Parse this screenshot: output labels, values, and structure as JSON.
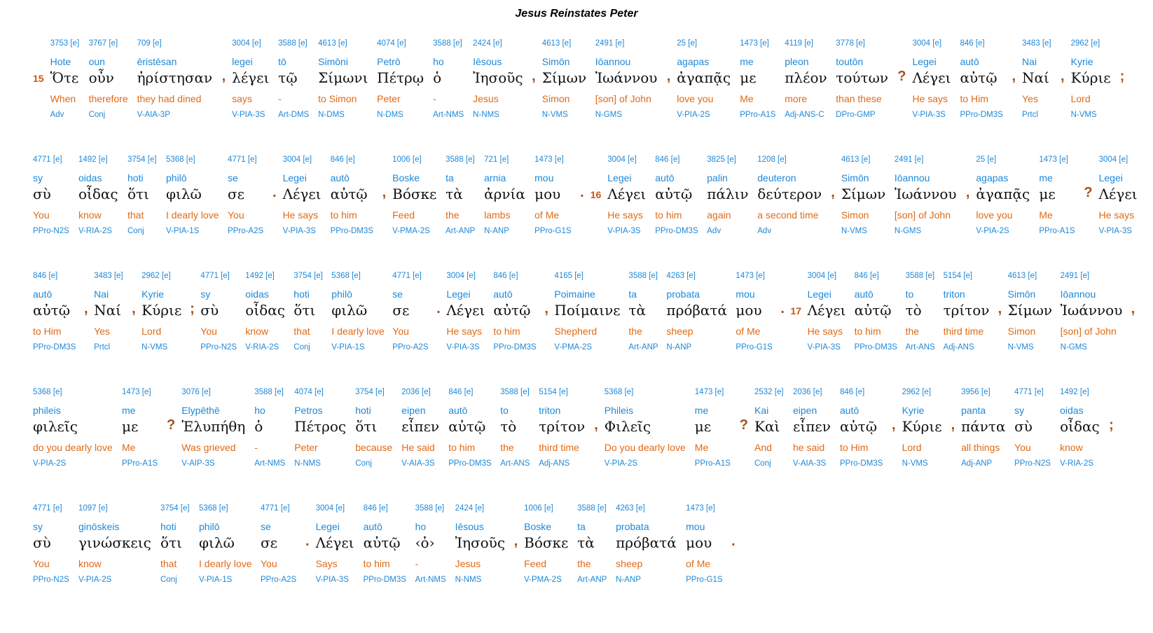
{
  "title": "Jesus Reinstates Peter",
  "rows": [
    [
      {
        "v": "15"
      },
      {
        "s": "3753 [e]",
        "t": "Hote",
        "g": "Ὅτε",
        "e": "When",
        "p": "Adv"
      },
      {
        "s": "3767 [e]",
        "t": "oun",
        "g": "οὖν",
        "e": "therefore",
        "p": "Conj"
      },
      {
        "s": "709 [e]",
        "t": "ēristēsan",
        "g": "ἠρίστησαν",
        "e": "they had dined",
        "p": "V-AIA-3P"
      },
      {
        "c": ","
      },
      {
        "s": "3004 [e]",
        "t": "legei",
        "g": "λέγει",
        "e": "says",
        "p": "V-PIA-3S"
      },
      {
        "s": "3588 [e]",
        "t": "tō",
        "g": "τῷ",
        "e": "-",
        "p": "Art-DMS"
      },
      {
        "s": "4613 [e]",
        "t": "Simōni",
        "g": "Σίμωνι",
        "e": "to Simon",
        "p": "N-DMS"
      },
      {
        "s": "4074 [e]",
        "t": "Petrō",
        "g": "Πέτρῳ",
        "e": "Peter",
        "p": "N-DMS"
      },
      {
        "s": "3588 [e]",
        "t": "ho",
        "g": "ὁ",
        "e": "-",
        "p": "Art-NMS"
      },
      {
        "s": "2424 [e]",
        "t": "Iēsous",
        "g": "Ἰησοῦς",
        "e": "Jesus",
        "p": "N-NMS"
      },
      {
        "c": ","
      },
      {
        "s": "4613 [e]",
        "t": "Simōn",
        "g": "Σίμων",
        "e": "Simon",
        "p": "N-VMS"
      },
      {
        "s": "2491 [e]",
        "t": "Iōannou",
        "g": "Ἰωάννου",
        "e": "[son] of John",
        "p": "N-GMS"
      },
      {
        "c": ","
      },
      {
        "s": "25 [e]",
        "t": "agapas",
        "g": "ἀγαπᾷς",
        "e": "love you",
        "p": "V-PIA-2S"
      },
      {
        "s": "1473 [e]",
        "t": "me",
        "g": "με",
        "e": "Me",
        "p": "PPro-A1S"
      },
      {
        "s": "4119 [e]",
        "t": "pleon",
        "g": "πλέον",
        "e": "more",
        "p": "Adj-ANS-C"
      },
      {
        "s": "3778 [e]",
        "t": "toutōn",
        "g": "τούτων",
        "e": "than these",
        "p": "DPro-GMP"
      },
      {
        "c": "?"
      },
      {
        "s": "3004 [e]",
        "t": "Legei",
        "g": "Λέγει",
        "e": "He says",
        "p": "V-PIA-3S"
      },
      {
        "s": "846 [e]",
        "t": "autō",
        "g": "αὐτῷ",
        "e": "to Him",
        "p": "PPro-DM3S"
      },
      {
        "c": ","
      },
      {
        "s": "3483 [e]",
        "t": "Nai",
        "g": "Ναί",
        "e": "Yes",
        "p": "Prtcl"
      },
      {
        "c": ","
      },
      {
        "s": "2962 [e]",
        "t": "Kyrie",
        "g": "Κύριε",
        "e": "Lord",
        "p": "N-VMS"
      },
      {
        "c": ";"
      }
    ],
    [
      {
        "s": "4771 [e]",
        "t": "sy",
        "g": "σὺ",
        "e": "You",
        "p": "PPro-N2S"
      },
      {
        "s": "1492 [e]",
        "t": "oidas",
        "g": "οἶδας",
        "e": "know",
        "p": "V-RIA-2S"
      },
      {
        "s": "3754 [e]",
        "t": "hoti",
        "g": "ὅτι",
        "e": "that",
        "p": "Conj"
      },
      {
        "s": "5368 [e]",
        "t": "philō",
        "g": "φιλῶ",
        "e": "I dearly love",
        "p": "V-PIA-1S"
      },
      {
        "s": "4771 [e]",
        "t": "se",
        "g": "σε",
        "e": "You",
        "p": "PPro-A2S"
      },
      {
        "c": "."
      },
      {
        "s": "3004 [e]",
        "t": "Legei",
        "g": "Λέγει",
        "e": "He says",
        "p": "V-PIA-3S"
      },
      {
        "s": "846 [e]",
        "t": "autō",
        "g": "αὐτῷ",
        "e": "to him",
        "p": "PPro-DM3S"
      },
      {
        "c": ","
      },
      {
        "s": "1006 [e]",
        "t": "Boske",
        "g": "Βόσκε",
        "e": "Feed",
        "p": "V-PMA-2S"
      },
      {
        "s": "3588 [e]",
        "t": "ta",
        "g": "τὰ",
        "e": "the",
        "p": "Art-ANP"
      },
      {
        "s": "721 [e]",
        "t": "arnia",
        "g": "ἀρνία",
        "e": "lambs",
        "p": "N-ANP"
      },
      {
        "s": "1473 [e]",
        "t": "mou",
        "g": "μου",
        "e": "of Me",
        "p": "PPro-G1S"
      },
      {
        "c": "."
      },
      {
        "v": "16"
      },
      {
        "s": "3004 [e]",
        "t": "Legei",
        "g": "Λέγει",
        "e": "He says",
        "p": "V-PIA-3S"
      },
      {
        "s": "846 [e]",
        "t": "autō",
        "g": "αὐτῷ",
        "e": "to him",
        "p": "PPro-DM3S"
      },
      {
        "s": "3825 [e]",
        "t": "palin",
        "g": "πάλιν",
        "e": "again",
        "p": "Adv"
      },
      {
        "s": "1208 [e]",
        "t": "deuteron",
        "g": "δεύτερον",
        "e": "a second time",
        "p": "Adv"
      },
      {
        "c": ","
      },
      {
        "s": "4613 [e]",
        "t": "Simōn",
        "g": "Σίμων",
        "e": "Simon",
        "p": "N-VMS"
      },
      {
        "s": "2491 [e]",
        "t": "Iōannou",
        "g": "Ἰωάννου",
        "e": "[son] of John",
        "p": "N-GMS"
      },
      {
        "c": ","
      },
      {
        "s": "25 [e]",
        "t": "agapas",
        "g": "ἀγαπᾷς",
        "e": "love you",
        "p": "V-PIA-2S"
      },
      {
        "s": "1473 [e]",
        "t": "me",
        "g": "με",
        "e": "Me",
        "p": "PPro-A1S"
      },
      {
        "c": "?"
      },
      {
        "s": "3004 [e]",
        "t": "Legei",
        "g": "Λέγει",
        "e": "He says",
        "p": "V-PIA-3S"
      }
    ],
    [
      {
        "s": "846 [e]",
        "t": "autō",
        "g": "αὐτῷ",
        "e": "to Him",
        "p": "PPro-DM3S"
      },
      {
        "c": ","
      },
      {
        "s": "3483 [e]",
        "t": "Nai",
        "g": "Ναί",
        "e": "Yes",
        "p": "Prtcl"
      },
      {
        "c": ","
      },
      {
        "s": "2962 [e]",
        "t": "Kyrie",
        "g": "Κύριε",
        "e": "Lord",
        "p": "N-VMS"
      },
      {
        "c": ";"
      },
      {
        "s": "4771 [e]",
        "t": "sy",
        "g": "σὺ",
        "e": "You",
        "p": "PPro-N2S"
      },
      {
        "s": "1492 [e]",
        "t": "oidas",
        "g": "οἶδας",
        "e": "know",
        "p": "V-RIA-2S"
      },
      {
        "s": "3754 [e]",
        "t": "hoti",
        "g": "ὅτι",
        "e": "that",
        "p": "Conj"
      },
      {
        "s": "5368 [e]",
        "t": "philō",
        "g": "φιλῶ",
        "e": "I dearly love",
        "p": "V-PIA-1S"
      },
      {
        "s": "4771 [e]",
        "t": "se",
        "g": "σε",
        "e": "You",
        "p": "PPro-A2S"
      },
      {
        "c": "."
      },
      {
        "s": "3004 [e]",
        "t": "Legei",
        "g": "Λέγει",
        "e": "He says",
        "p": "V-PIA-3S"
      },
      {
        "s": "846 [e]",
        "t": "autō",
        "g": "αὐτῷ",
        "e": "to him",
        "p": "PPro-DM3S"
      },
      {
        "c": ","
      },
      {
        "s": "4165 [e]",
        "t": "Poimaine",
        "g": "Ποίμαινε",
        "e": "Shepherd",
        "p": "V-PMA-2S"
      },
      {
        "s": "3588 [e]",
        "t": "ta",
        "g": "τὰ",
        "e": "the",
        "p": "Art-ANP"
      },
      {
        "s": "4263 [e]",
        "t": "probata",
        "g": "πρόβατά",
        "e": "sheep",
        "p": "N-ANP"
      },
      {
        "s": "1473 [e]",
        "t": "mou",
        "g": "μου",
        "e": "of Me",
        "p": "PPro-G1S"
      },
      {
        "c": "."
      },
      {
        "v": "17"
      },
      {
        "s": "3004 [e]",
        "t": "Legei",
        "g": "Λέγει",
        "e": "He says",
        "p": "V-PIA-3S"
      },
      {
        "s": "846 [e]",
        "t": "autō",
        "g": "αὐτῷ",
        "e": "to him",
        "p": "PPro-DM3S"
      },
      {
        "s": "3588 [e]",
        "t": "to",
        "g": "τὸ",
        "e": "the",
        "p": "Art-ANS"
      },
      {
        "s": "5154 [e]",
        "t": "triton",
        "g": "τρίτον",
        "e": "third time",
        "p": "Adj-ANS"
      },
      {
        "c": ","
      },
      {
        "s": "4613 [e]",
        "t": "Simōn",
        "g": "Σίμων",
        "e": "Simon",
        "p": "N-VMS"
      },
      {
        "s": "2491 [e]",
        "t": "Iōannou",
        "g": "Ἰωάννου",
        "e": "[son] of John",
        "p": "N-GMS"
      },
      {
        "c": ","
      }
    ],
    [
      {
        "s": "5368 [e]",
        "t": "phileis",
        "g": "φιλεῖς",
        "e": "do you dearly love",
        "p": "V-PIA-2S"
      },
      {
        "s": "1473 [e]",
        "t": "me",
        "g": "με",
        "e": "Me",
        "p": "PPro-A1S"
      },
      {
        "c": "?"
      },
      {
        "s": "3076 [e]",
        "t": "Elypēthē",
        "g": "Ἐλυπήθη",
        "e": "Was grieved",
        "p": "V-AIP-3S"
      },
      {
        "s": "3588 [e]",
        "t": "ho",
        "g": "ὁ",
        "e": "-",
        "p": "Art-NMS"
      },
      {
        "s": "4074 [e]",
        "t": "Petros",
        "g": "Πέτρος",
        "e": "Peter",
        "p": "N-NMS"
      },
      {
        "s": "3754 [e]",
        "t": "hoti",
        "g": "ὅτι",
        "e": "because",
        "p": "Conj"
      },
      {
        "s": "2036 [e]",
        "t": "eipen",
        "g": "εἶπεν",
        "e": "He said",
        "p": "V-AIA-3S"
      },
      {
        "s": "846 [e]",
        "t": "autō",
        "g": "αὐτῷ",
        "e": "to him",
        "p": "PPro-DM3S"
      },
      {
        "s": "3588 [e]",
        "t": "to",
        "g": "τὸ",
        "e": "the",
        "p": "Art-ANS"
      },
      {
        "s": "5154 [e]",
        "t": "triton",
        "g": "τρίτον",
        "e": "third time",
        "p": "Adj-ANS"
      },
      {
        "c": ","
      },
      {
        "s": "5368 [e]",
        "t": "Phileis",
        "g": "Φιλεῖς",
        "e": "Do you dearly love",
        "p": "V-PIA-2S"
      },
      {
        "s": "1473 [e]",
        "t": "me",
        "g": "με",
        "e": "Me",
        "p": "PPro-A1S"
      },
      {
        "c": "?"
      },
      {
        "s": "2532 [e]",
        "t": "Kai",
        "g": "Καὶ",
        "e": "And",
        "p": "Conj"
      },
      {
        "s": "2036 [e]",
        "t": "eipen",
        "g": "εἶπεν",
        "e": "he said",
        "p": "V-AIA-3S"
      },
      {
        "s": "846 [e]",
        "t": "autō",
        "g": "αὐτῷ",
        "e": "to Him",
        "p": "PPro-DM3S"
      },
      {
        "c": ","
      },
      {
        "s": "2962 [e]",
        "t": "Kyrie",
        "g": "Κύριε",
        "e": "Lord",
        "p": "N-VMS"
      },
      {
        "c": ","
      },
      {
        "s": "3956 [e]",
        "t": "panta",
        "g": "πάντα",
        "e": "all things",
        "p": "Adj-ANP"
      },
      {
        "s": "4771 [e]",
        "t": "sy",
        "g": "σὺ",
        "e": "You",
        "p": "PPro-N2S"
      },
      {
        "s": "1492 [e]",
        "t": "oidas",
        "g": "οἶδας",
        "e": "know",
        "p": "V-RIA-2S"
      },
      {
        "c": ";"
      }
    ],
    [
      {
        "s": "4771 [e]",
        "t": "sy",
        "g": "σὺ",
        "e": "You",
        "p": "PPro-N2S"
      },
      {
        "s": "1097 [e]",
        "t": "ginōskeis",
        "g": "γινώσκεις",
        "e": "know",
        "p": "V-PIA-2S"
      },
      {
        "s": "3754 [e]",
        "t": "hoti",
        "g": "ὅτι",
        "e": "that",
        "p": "Conj"
      },
      {
        "s": "5368 [e]",
        "t": "philō",
        "g": "φιλῶ",
        "e": "I dearly love",
        "p": "V-PIA-1S"
      },
      {
        "s": "4771 [e]",
        "t": "se",
        "g": "σε",
        "e": "You",
        "p": "PPro-A2S"
      },
      {
        "c": "."
      },
      {
        "s": "3004 [e]",
        "t": "Legei",
        "g": "Λέγει",
        "e": "Says",
        "p": "V-PIA-3S"
      },
      {
        "s": "846 [e]",
        "t": "autō",
        "g": "αὐτῷ",
        "e": "to him",
        "p": "PPro-DM3S"
      },
      {
        "s": "3588 [e]",
        "t": "ho",
        "g": "‹ὁ›",
        "e": "-",
        "p": "Art-NMS"
      },
      {
        "s": "2424 [e]",
        "t": "Iēsous",
        "g": "Ἰησοῦς",
        "e": "Jesus",
        "p": "N-NMS"
      },
      {
        "c": ","
      },
      {
        "s": "1006 [e]",
        "t": "Boske",
        "g": "Βόσκε",
        "e": "Feed",
        "p": "V-PMA-2S"
      },
      {
        "s": "3588 [e]",
        "t": "ta",
        "g": "τὰ",
        "e": "the",
        "p": "Art-ANP"
      },
      {
        "s": "4263 [e]",
        "t": "probata",
        "g": "πρόβατά",
        "e": "sheep",
        "p": "N-ANP"
      },
      {
        "s": "1473 [e]",
        "t": "mou",
        "g": "μου",
        "e": "of Me",
        "p": "PPro-G1S"
      },
      {
        "c": "."
      }
    ]
  ]
}
